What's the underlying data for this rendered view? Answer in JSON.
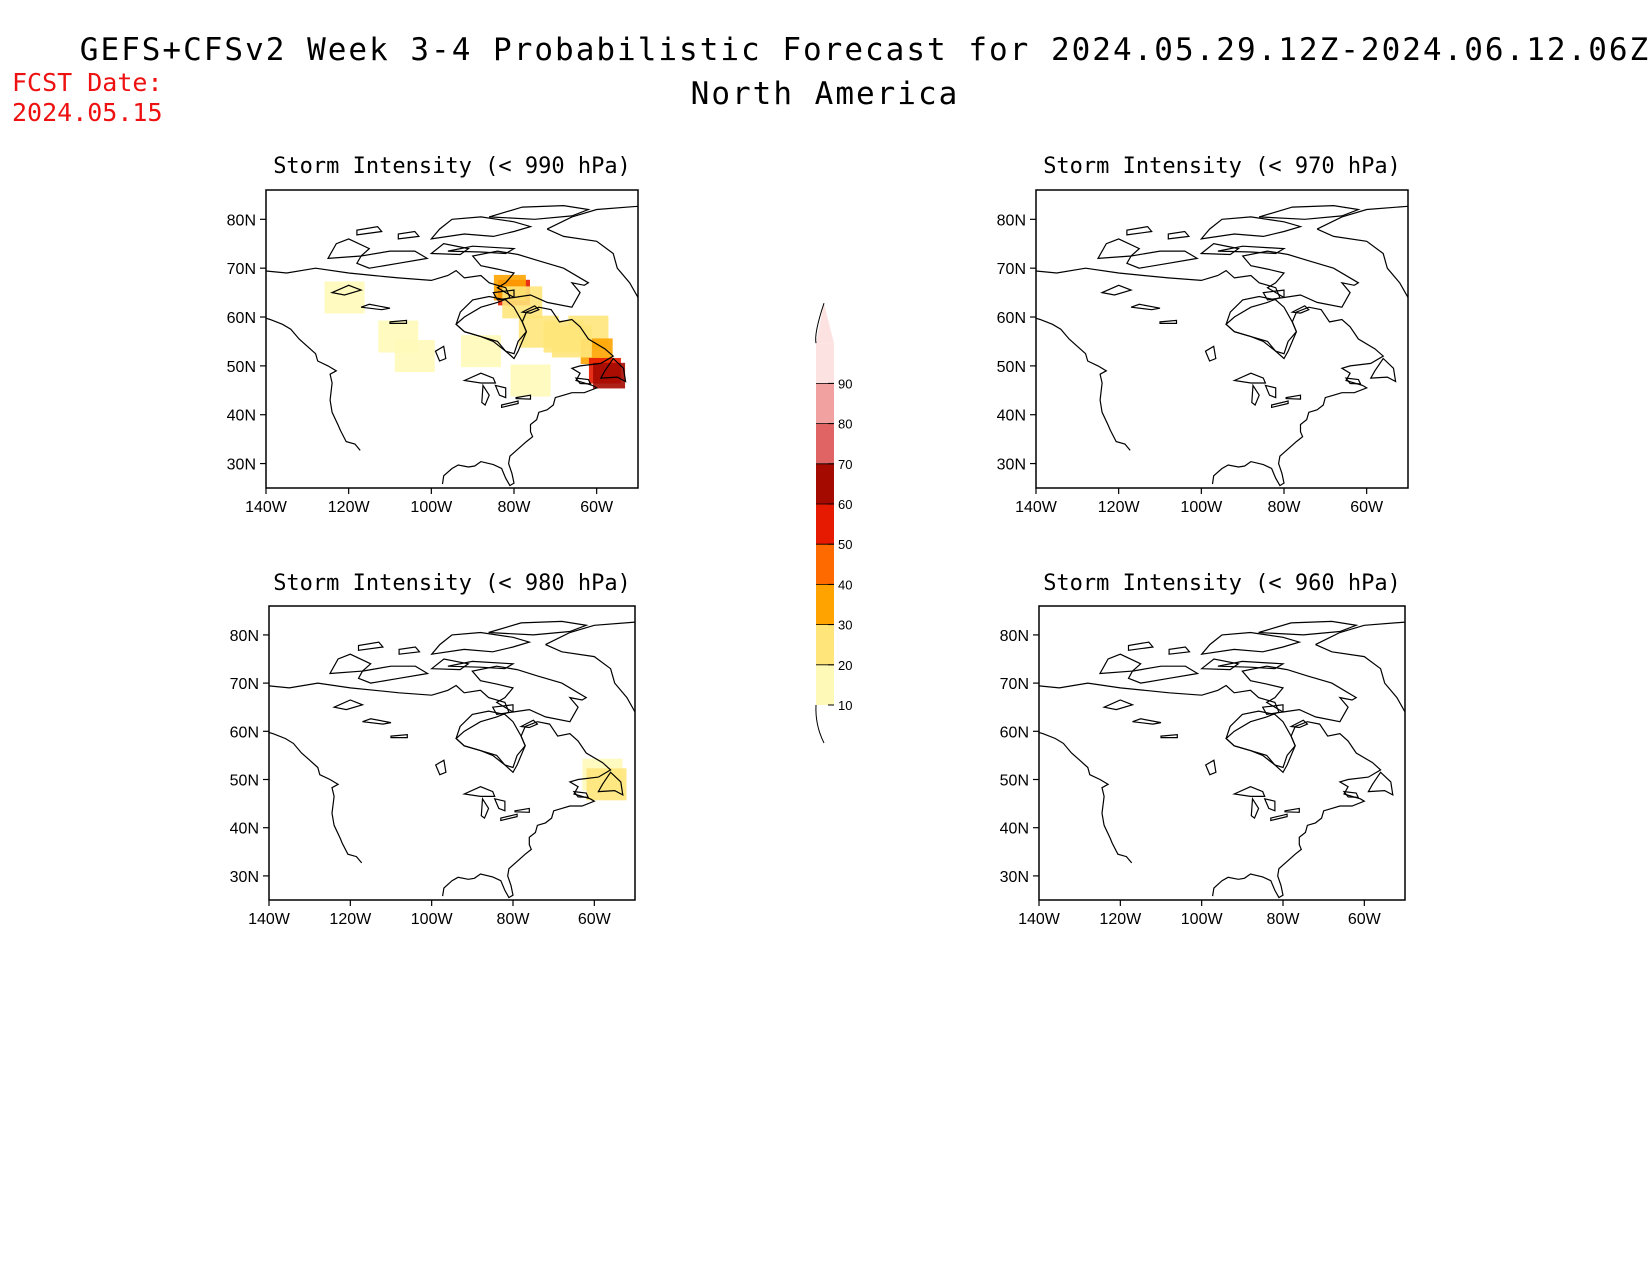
{
  "header": {
    "title_line1": "GEFS+CFSv2 Week 3-4 Probabilistic Forecast for 2024.05.29.12Z-2024.06.12.06Z",
    "title_line2": "North America",
    "fcst_label": "FCST Date:",
    "fcst_date": "2024.05.15"
  },
  "axes": {
    "lat_labels": [
      "30N",
      "40N",
      "50N",
      "60N",
      "70N",
      "80N"
    ],
    "lat_values": [
      30,
      40,
      50,
      60,
      70,
      80
    ],
    "lon_labels": [
      "140W",
      "120W",
      "100W",
      "80W",
      "60W"
    ],
    "lon_values": [
      -140,
      -120,
      -100,
      -80,
      -60
    ],
    "lat_range": [
      25,
      86
    ],
    "lon_range": [
      -140,
      -50
    ]
  },
  "panels": [
    {
      "title": "Storm Intensity (< 990 hPa)",
      "threshold_hpa": 990,
      "hotspots": [
        {
          "lon": -80,
          "lat": 65,
          "level": 50
        },
        {
          "lon": -81,
          "lat": 66,
          "level": 30
        },
        {
          "lon": -78,
          "lat": 63,
          "level": 20
        },
        {
          "lon": -74,
          "lat": 57,
          "level": 20
        },
        {
          "lon": -68,
          "lat": 56,
          "level": 20
        },
        {
          "lon": -62,
          "lat": 57,
          "level": 20
        },
        {
          "lon": -60,
          "lat": 53,
          "level": 30
        },
        {
          "lon": -58,
          "lat": 49,
          "level": 50
        },
        {
          "lon": -57,
          "lat": 48,
          "level": 60
        },
        {
          "lon": -108,
          "lat": 56,
          "level": 10
        },
        {
          "lon": -104,
          "lat": 52,
          "level": 10
        },
        {
          "lon": -121,
          "lat": 64,
          "level": 10
        },
        {
          "lon": -88,
          "lat": 53,
          "level": 10
        },
        {
          "lon": -76,
          "lat": 47,
          "level": 10
        },
        {
          "lon": -66,
          "lat": 55,
          "level": 20
        }
      ]
    },
    {
      "title": "Storm Intensity (< 970 hPa)",
      "threshold_hpa": 970,
      "hotspots": []
    },
    {
      "title": "Storm Intensity (< 980 hPa)",
      "threshold_hpa": 980,
      "hotspots": [
        {
          "lon": -58,
          "lat": 51,
          "level": 10
        },
        {
          "lon": -57,
          "lat": 49,
          "level": 20
        }
      ]
    },
    {
      "title": "Storm Intensity (< 960 hPa)",
      "threshold_hpa": 960,
      "hotspots": []
    }
  ],
  "colorbar": {
    "levels": [
      10,
      20,
      30,
      40,
      50,
      60,
      70,
      80,
      90
    ],
    "labels": [
      "10",
      "20",
      "30",
      "40",
      "50",
      "60",
      "70",
      "80",
      "90"
    ],
    "colors": [
      "#fff9b8",
      "#ffe57a",
      "#ffa300",
      "#ff6a00",
      "#e61a00",
      "#a50a00",
      "#e06464",
      "#f2a1a1",
      "#fde2e2"
    ]
  }
}
